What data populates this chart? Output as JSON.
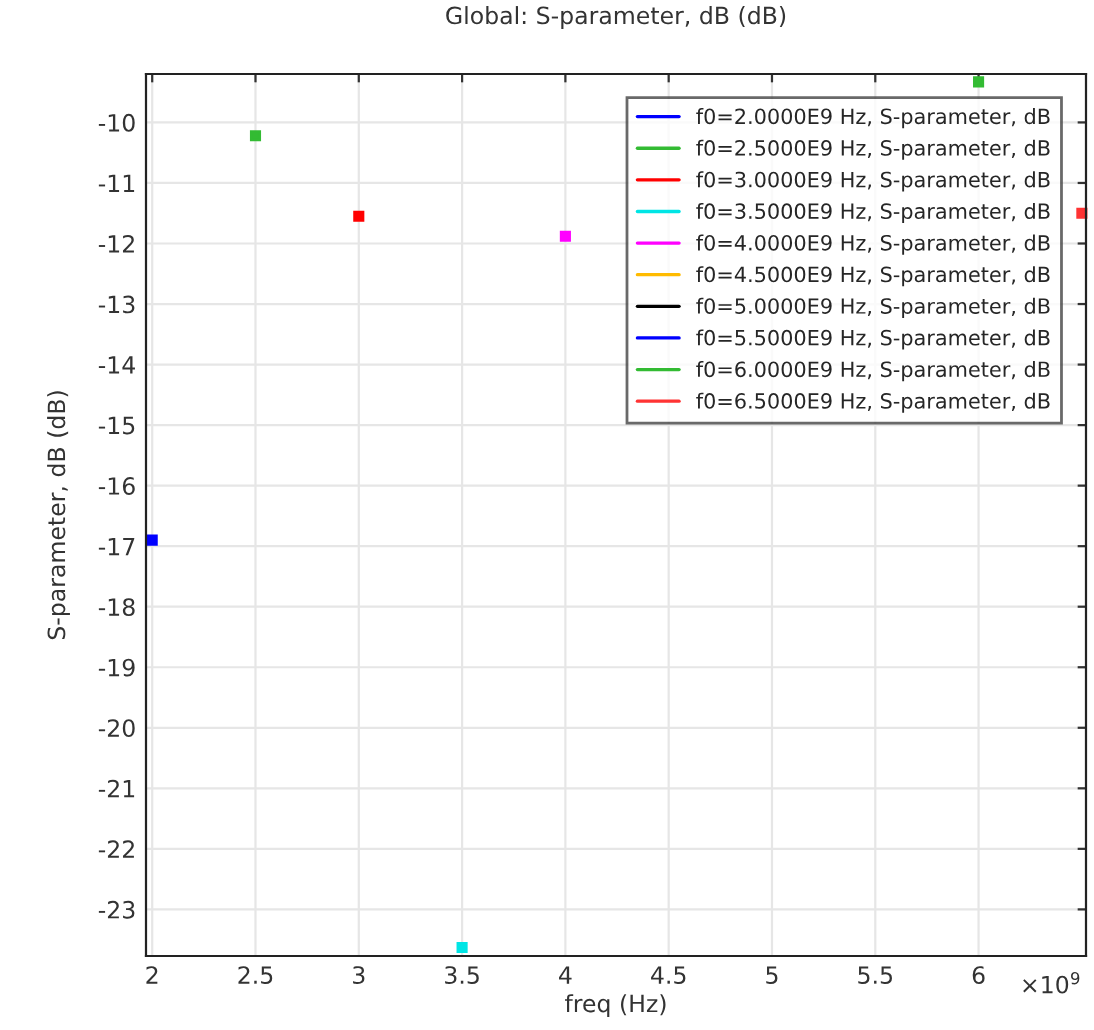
{
  "chart_data": {
    "type": "line",
    "title": "Global: S-parameter, dB (dB)",
    "xlabel": "freq (Hz)",
    "ylabel": "S-parameter, dB (dB)",
    "annotations": [
      "×10$^{9}$"
    ],
    "marker": "square",
    "grid": true,
    "legend": "top right",
    "xlim": [
      1.97,
      6.52
    ],
    "xticks": [
      2,
      2.5,
      3,
      3.5,
      4,
      4.5,
      5,
      5.5,
      6
    ],
    "ylim": [
      -23.77,
      -9.2
    ],
    "yticks": [
      -10,
      -11,
      -12,
      -13,
      -14,
      -15,
      -16,
      -17,
      -18,
      -19,
      -20,
      -21,
      -22,
      -23
    ],
    "series": [
      {
        "name": "f0=2.0000E9 Hz, S-parameter, dB",
        "color": "#0000ff",
        "x": [
          2.0
        ],
        "values": [
          -16.9
        ]
      },
      {
        "name": "f0=2.5000E9 Hz, S-parameter, dB",
        "color": "#33bb33",
        "x": [
          2.5
        ],
        "values": [
          -10.22
        ]
      },
      {
        "name": "f0=3.0000E9 Hz, S-parameter, dB",
        "color": "#ff0000",
        "x": [
          3.0
        ],
        "values": [
          -11.55
        ]
      },
      {
        "name": "f0=3.5000E9 Hz, S-parameter, dB",
        "color": "#00e5e5",
        "x": [
          3.5
        ],
        "values": [
          -23.63
        ]
      },
      {
        "name": "f0=4.0000E9 Hz, S-parameter, dB",
        "color": "#ff00ff",
        "x": [
          4.0
        ],
        "values": [
          -11.88
        ]
      },
      {
        "name": "f0=4.5000E9 Hz, S-parameter, dB",
        "color": "#ffbb00"
      },
      {
        "name": "f0=5.0000E9 Hz, S-parameter, dB",
        "color": "#000000"
      },
      {
        "name": "f0=5.5000E9 Hz, S-parameter, dB",
        "color": "#0000ff"
      },
      {
        "name": "f0=6.0000E9 Hz, S-parameter, dB",
        "color": "#33bb33",
        "x": [
          6.0
        ],
        "values": [
          -9.33
        ]
      },
      {
        "name": "f0=6.5000E9 Hz, S-parameter, dB",
        "color": "#ff3333",
        "x": [
          6.5
        ],
        "values": [
          -11.5
        ]
      }
    ]
  }
}
